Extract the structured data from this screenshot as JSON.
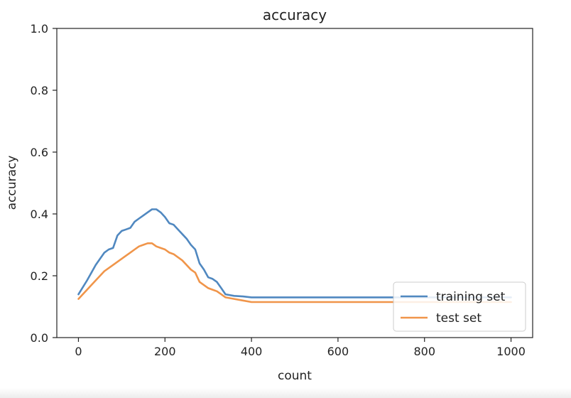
{
  "chart_data": {
    "type": "line",
    "title": "accuracy",
    "xlabel": "count",
    "ylabel": "accuracy",
    "xlim": [
      -50,
      1050
    ],
    "ylim": [
      0.0,
      1.0
    ],
    "xticks": [
      0,
      200,
      400,
      600,
      800,
      1000
    ],
    "xtick_labels": [
      "0",
      "200",
      "400",
      "600",
      "800",
      "1000"
    ],
    "yticks": [
      0.0,
      0.2,
      0.4,
      0.6,
      0.8,
      1.0
    ],
    "ytick_labels": [
      "0.0",
      "0.2",
      "0.4",
      "0.6",
      "0.8",
      "1.0"
    ],
    "grid": false,
    "legend_position": "lower-right",
    "series": [
      {
        "name": "training set",
        "color": "#5088c0",
        "x": [
          0,
          20,
          40,
          60,
          70,
          80,
          90,
          100,
          110,
          120,
          130,
          140,
          150,
          160,
          170,
          180,
          190,
          200,
          210,
          220,
          230,
          240,
          250,
          260,
          270,
          280,
          290,
          300,
          310,
          320,
          330,
          340,
          360,
          380,
          400,
          1000
        ],
        "y": [
          0.14,
          0.185,
          0.235,
          0.275,
          0.285,
          0.29,
          0.33,
          0.345,
          0.35,
          0.355,
          0.375,
          0.385,
          0.395,
          0.405,
          0.415,
          0.415,
          0.405,
          0.39,
          0.37,
          0.365,
          0.35,
          0.335,
          0.32,
          0.3,
          0.285,
          0.24,
          0.22,
          0.195,
          0.19,
          0.18,
          0.16,
          0.14,
          0.135,
          0.133,
          0.13,
          0.13
        ]
      },
      {
        "name": "test set",
        "color": "#f0954a",
        "x": [
          0,
          20,
          40,
          60,
          80,
          100,
          110,
          120,
          130,
          140,
          150,
          160,
          170,
          180,
          190,
          200,
          210,
          220,
          230,
          240,
          250,
          260,
          270,
          280,
          290,
          300,
          310,
          320,
          330,
          340,
          360,
          380,
          400,
          420,
          1000
        ],
        "y": [
          0.125,
          0.155,
          0.185,
          0.215,
          0.235,
          0.255,
          0.265,
          0.275,
          0.285,
          0.295,
          0.3,
          0.305,
          0.305,
          0.295,
          0.29,
          0.285,
          0.275,
          0.27,
          0.26,
          0.25,
          0.235,
          0.22,
          0.21,
          0.18,
          0.17,
          0.16,
          0.155,
          0.15,
          0.14,
          0.13,
          0.125,
          0.12,
          0.115,
          0.115,
          0.115
        ]
      }
    ]
  }
}
